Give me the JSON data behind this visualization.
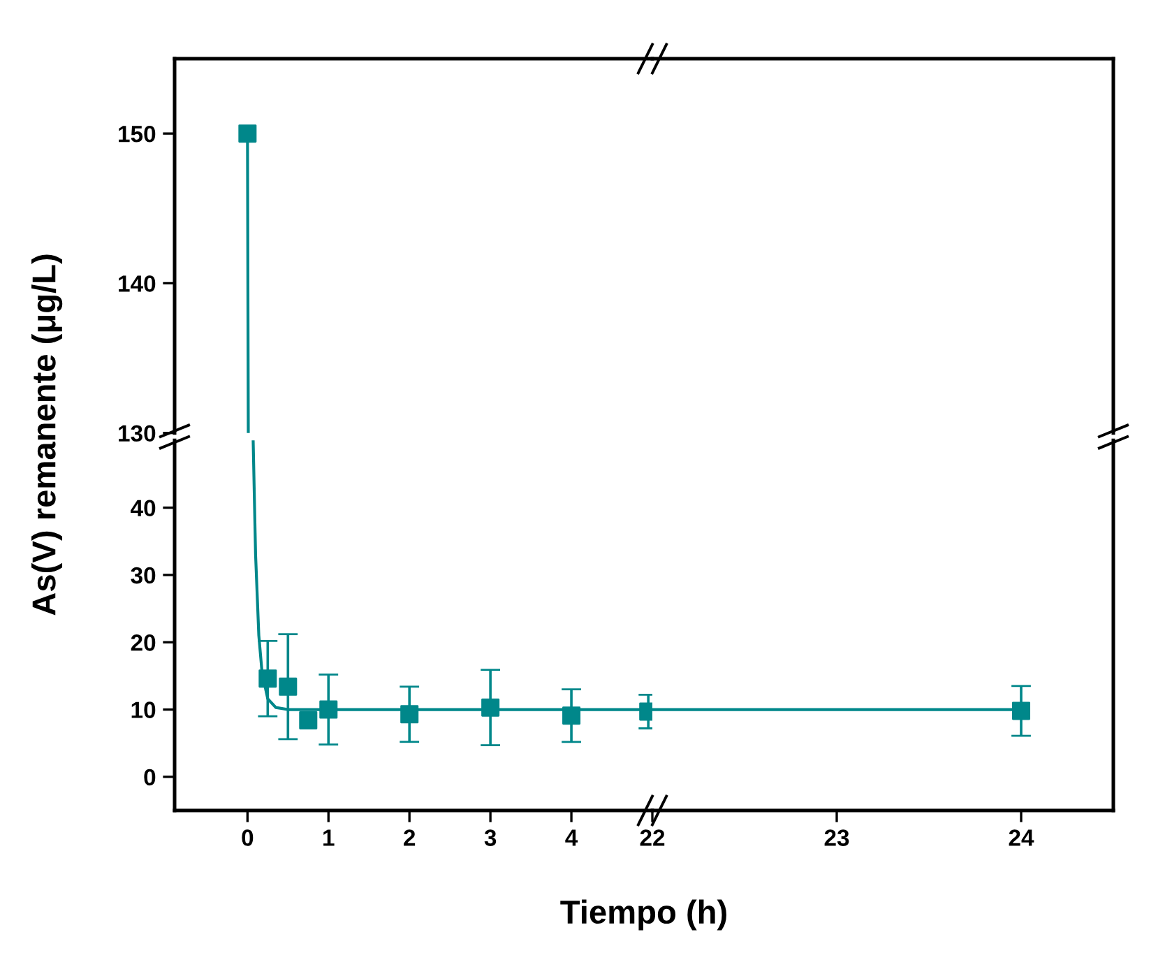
{
  "chart_data": [
    {
      "type": "line",
      "xlim": [
        -0.9,
        5
      ],
      "ylim": [
        130,
        155
      ],
      "yticks": [
        130,
        140,
        150
      ],
      "tick_labels": "y",
      "series": [
        {
          "color": "#00878a",
          "marker": "none",
          "x": [
            0,
            0.01
          ],
          "values": [
            150,
            130
          ]
        },
        {
          "type": "scatter",
          "color": "#00878a",
          "marker": "square",
          "x": [
            0
          ],
          "values": [
            150
          ]
        }
      ]
    },
    {
      "type": "line",
      "xlim": [
        22,
        24.5
      ],
      "ylim": [
        130,
        155
      ],
      "tick_labels": false
    },
    {
      "type": "line",
      "xlim": [
        -0.9,
        5
      ],
      "ylim": [
        -5,
        50
      ],
      "xticks": [
        0,
        1,
        2,
        3,
        4
      ],
      "yticks": [
        0,
        10,
        20,
        30,
        40
      ],
      "xlabel": "Tiempo (h)",
      "ylabel": "As(V) remanente (μg/L)",
      "series": [
        {
          "color": "#00878a",
          "marker": "none",
          "x": [
            0.07,
            0.1,
            0.14,
            0.18,
            0.25,
            0.35,
            0.5,
            1,
            2,
            3,
            4,
            4.95
          ],
          "values": [
            50,
            33,
            21,
            15.5,
            11.6,
            10.3,
            10,
            10,
            10,
            10,
            10,
            10
          ]
        },
        {
          "type": "scatter",
          "color": "#00878a",
          "marker": "square",
          "x": [
            0.25,
            0.5,
            0.75,
            1,
            2,
            3,
            4,
            4.95
          ],
          "values": [
            14.6,
            13.4,
            8.4,
            10.0,
            9.3,
            10.3,
            9.1,
            9.7
          ],
          "errors": [
            5.6,
            7.8,
            null,
            5.2,
            4.1,
            5.6,
            3.9,
            2.5
          ]
        }
      ]
    },
    {
      "type": "line",
      "xlim": [
        22,
        24.5
      ],
      "ylim": [
        -5,
        50
      ],
      "xticks": [
        22,
        23,
        24
      ],
      "tick_labels": "x",
      "series": [
        {
          "color": "#00878a",
          "marker": "none",
          "x": [
            22,
            24
          ],
          "values": [
            10,
            10
          ]
        },
        {
          "type": "scatter",
          "color": "#00878a",
          "marker": "square",
          "x": [
            24
          ],
          "values": [
            9.8
          ],
          "errors": [
            3.7
          ]
        }
      ]
    }
  ]
}
